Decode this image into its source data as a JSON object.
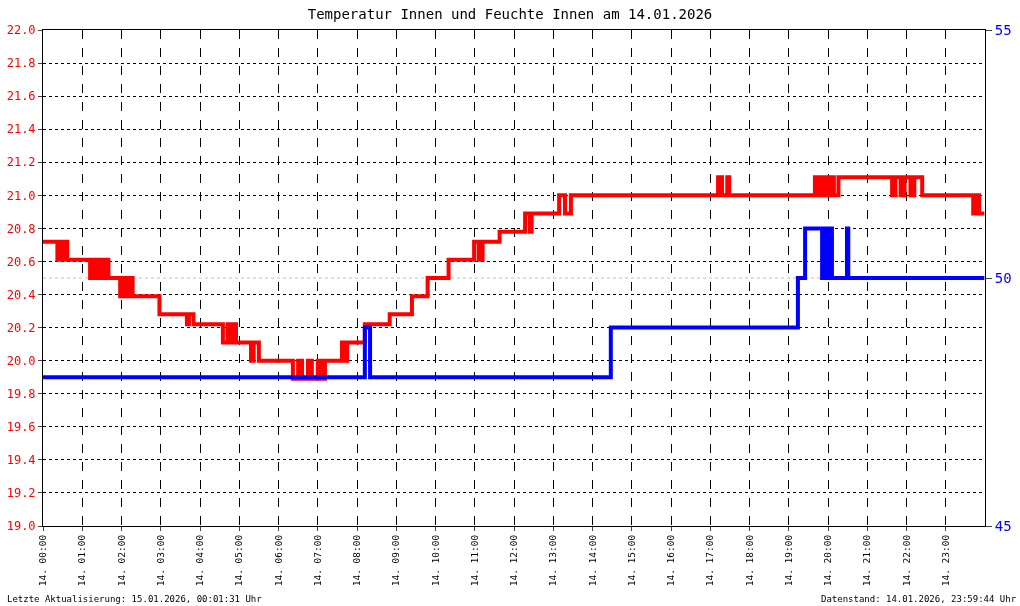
{
  "chart_data": {
    "type": "step",
    "title": "Temperatur Innen und Feuchte Innen am 14.01.2026",
    "xlim": [
      "2026-01-14T00:00",
      "2026-01-15T00:00"
    ],
    "xticks": [
      {
        "value": "2026-01-14T00:00",
        "label": "14. 00:00"
      },
      {
        "value": "2026-01-14T01:00",
        "label": "14. 01:00"
      },
      {
        "value": "2026-01-14T02:00",
        "label": "14. 02:00"
      },
      {
        "value": "2026-01-14T03:00",
        "label": "14. 03:00"
      },
      {
        "value": "2026-01-14T04:00",
        "label": "14. 04:00"
      },
      {
        "value": "2026-01-14T05:00",
        "label": "14. 05:00"
      },
      {
        "value": "2026-01-14T06:00",
        "label": "14. 06:00"
      },
      {
        "value": "2026-01-14T07:00",
        "label": "14. 07:00"
      },
      {
        "value": "2026-01-14T08:00",
        "label": "14. 08:00"
      },
      {
        "value": "2026-01-14T09:00",
        "label": "14. 09:00"
      },
      {
        "value": "2026-01-14T10:00",
        "label": "14. 10:00"
      },
      {
        "value": "2026-01-14T11:00",
        "label": "14. 11:00"
      },
      {
        "value": "2026-01-14T12:00",
        "label": "14. 12:00"
      },
      {
        "value": "2026-01-14T13:00",
        "label": "14. 13:00"
      },
      {
        "value": "2026-01-14T14:00",
        "label": "14. 14:00"
      },
      {
        "value": "2026-01-14T15:00",
        "label": "14. 15:00"
      },
      {
        "value": "2026-01-14T16:00",
        "label": "14. 16:00"
      },
      {
        "value": "2026-01-14T17:00",
        "label": "14. 17:00"
      },
      {
        "value": "2026-01-14T18:00",
        "label": "14. 18:00"
      },
      {
        "value": "2026-01-14T19:00",
        "label": "14. 19:00"
      },
      {
        "value": "2026-01-14T20:00",
        "label": "14. 20:00"
      },
      {
        "value": "2026-01-14T21:00",
        "label": "14. 21:00"
      },
      {
        "value": "2026-01-14T22:00",
        "label": "14. 22:00"
      },
      {
        "value": "2026-01-14T23:00",
        "label": "14. 23:00"
      }
    ],
    "ylim": [
      19,
      22
    ],
    "yticks": [
      {
        "value": 19,
        "label": "19.0"
      },
      {
        "value": 19.2,
        "label": "19.2"
      },
      {
        "value": 19.4,
        "label": "19.4"
      },
      {
        "value": 19.6,
        "label": "19.6"
      },
      {
        "value": 19.8,
        "label": "19.8"
      },
      {
        "value": 20,
        "label": "20.0"
      },
      {
        "value": 20.2,
        "label": "20.2"
      },
      {
        "value": 20.4,
        "label": "20.4"
      },
      {
        "value": 20.6,
        "label": "20.6"
      },
      {
        "value": 20.8,
        "label": "20.8"
      },
      {
        "value": 21,
        "label": "21.0"
      },
      {
        "value": 21.2,
        "label": "21.2"
      },
      {
        "value": 21.4,
        "label": "21.4"
      },
      {
        "value": 21.6,
        "label": "21.6"
      },
      {
        "value": 21.8,
        "label": "21.8"
      },
      {
        "value": 22,
        "label": "22.0"
      }
    ],
    "y2lim": [
      45,
      55
    ],
    "y2ticks": [
      45,
      50,
      55
    ],
    "grid": true,
    "series": [
      {
        "color": "#ff0000",
        "x": [
          "2026-01-14T00:00",
          "2026-01-14T00:22",
          "2026-01-14T00:27",
          "2026-01-14T00:31",
          "2026-01-14T00:35",
          "2026-01-14T00:37",
          "2026-01-14T01:12",
          "2026-01-14T01:18",
          "2026-01-14T01:23",
          "2026-01-14T01:27",
          "2026-01-14T01:30",
          "2026-01-14T01:36",
          "2026-01-14T01:40",
          "2026-01-14T01:58",
          "2026-01-14T02:03",
          "2026-01-14T02:09",
          "2026-01-14T02:12",
          "2026-01-14T02:17",
          "2026-01-14T02:58",
          "2026-01-14T03:40",
          "2026-01-14T03:43",
          "2026-01-14T03:50",
          "2026-01-14T04:35",
          "2026-01-14T04:42",
          "2026-01-14T04:48",
          "2026-01-14T04:53",
          "2026-01-14T04:55",
          "2026-01-14T05:18",
          "2026-01-14T05:22",
          "2026-01-14T05:30",
          "2026-01-14T06:22",
          "2026-01-14T06:30",
          "2026-01-14T06:36",
          "2026-01-14T06:45",
          "2026-01-14T06:51",
          "2026-01-14T07:00",
          "2026-01-14T07:06",
          "2026-01-14T07:11",
          "2026-01-14T07:37",
          "2026-01-14T07:42",
          "2026-01-14T07:45",
          "2026-01-14T08:12",
          "2026-01-14T08:50",
          "2026-01-14T09:24",
          "2026-01-14T09:48",
          "2026-01-14T10:20",
          "2026-01-14T10:59",
          "2026-01-14T11:06",
          "2026-01-14T11:12",
          "2026-01-14T11:38",
          "2026-01-14T12:17",
          "2026-01-14T12:24",
          "2026-01-14T12:27",
          "2026-01-14T13:09",
          "2026-01-14T13:18",
          "2026-01-14T13:27",
          "2026-01-14T17:12",
          "2026-01-14T17:18",
          "2026-01-14T17:26",
          "2026-01-14T17:29",
          "2026-01-14T19:40",
          "2026-01-14T19:45",
          "2026-01-14T19:51",
          "2026-01-14T19:57",
          "2026-01-14T20:03",
          "2026-01-14T20:09",
          "2026-01-14T20:16",
          "2026-01-14T21:38",
          "2026-01-14T21:43",
          "2026-01-14T21:51",
          "2026-01-14T21:57",
          "2026-01-14T22:06",
          "2026-01-14T22:12",
          "2026-01-14T22:24",
          "2026-01-14T23:42",
          "2026-01-14T23:48",
          "2026-01-14T23:51",
          "2026-01-14T23:59"
        ],
        "values": [
          20.72,
          20.61,
          20.72,
          20.61,
          20.72,
          20.61,
          20.5,
          20.61,
          20.5,
          20.61,
          20.5,
          20.61,
          20.5,
          20.39,
          20.5,
          20.39,
          20.5,
          20.39,
          20.28,
          20.22,
          20.28,
          20.22,
          20.11,
          20.22,
          20.11,
          20.22,
          20.11,
          20.0,
          20.11,
          20.0,
          19.89,
          20.0,
          19.89,
          20.0,
          19.89,
          20.0,
          19.89,
          20.0,
          20.11,
          20.0,
          20.11,
          20.22,
          20.28,
          20.39,
          20.5,
          20.61,
          20.72,
          20.61,
          20.72,
          20.78,
          20.89,
          20.78,
          20.89,
          21.0,
          20.89,
          21.0,
          21.11,
          21.0,
          21.11,
          21.0,
          21.11,
          21.0,
          21.11,
          21.0,
          21.11,
          21.0,
          21.11,
          21.0,
          21.11,
          21.0,
          21.11,
          21.0,
          21.11,
          21.0,
          20.89,
          21.0,
          20.89,
          20.89
        ]
      },
      {
        "color": "#0000ff",
        "axis": "y2",
        "x": [
          "2026-01-14T00:00",
          "2026-01-14T08:12",
          "2026-01-14T08:20",
          "2026-01-14T14:28",
          "2026-01-14T19:14",
          "2026-01-14T19:25",
          "2026-01-14T19:51",
          "2026-01-14T19:54",
          "2026-01-14T19:57",
          "2026-01-14T20:00",
          "2026-01-14T20:06",
          "2026-01-14T20:29",
          "2026-01-14T20:31",
          "2026-01-14T23:59"
        ],
        "values": [
          48,
          49,
          48,
          49,
          50,
          51,
          50,
          51,
          50,
          51,
          50,
          51,
          50,
          50
        ]
      }
    ],
    "ref_lines": [
      {
        "axis": "y2",
        "value": 50,
        "color": "#c0c0c0",
        "line_style": "dotted"
      }
    ],
    "annotations": [
      "Letzte Aktualisierung: 15.01.2026, 00:01:31 Uhr",
      "Datenstand: 14.01.2026, 23:59:44 Uhr"
    ]
  }
}
